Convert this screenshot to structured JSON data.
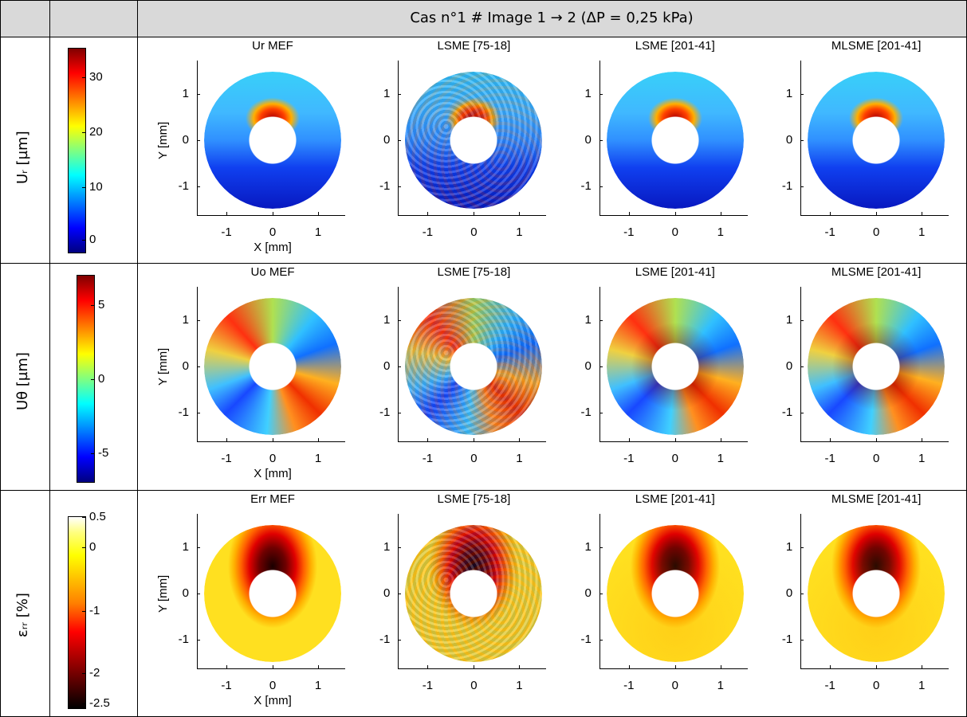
{
  "header": {
    "title": "Cas n°1 # Image 1 → 2 (ΔP = 0,25 kPa)"
  },
  "axes": {
    "xticks": [
      "-1",
      "0",
      "1"
    ],
    "yticks": [
      "1",
      "0",
      "-1"
    ],
    "xlabel": "X [mm]",
    "ylabel": "Y [mm]"
  },
  "rows": [
    {
      "label": "Uᵣ [µm]",
      "colorbar": {
        "ticks": [
          "30",
          "20",
          "10",
          "0"
        ]
      },
      "panels": [
        "Ur MEF",
        "LSME [75-18]",
        "LSME [201-41]",
        "MLSME [201-41]"
      ]
    },
    {
      "label": "Uθ [µm]",
      "colorbar": {
        "ticks": [
          "5",
          "0",
          "-5"
        ]
      },
      "panels": [
        "Uo MEF",
        "LSME [75-18]",
        "LSME [201-41]",
        "MLSME [201-41]"
      ]
    },
    {
      "label": "εᵣᵣ [%]",
      "colorbar": {
        "ticks": [
          "0.5",
          "0",
          "-1",
          "-2",
          "-2.5"
        ]
      },
      "panels": [
        "Err MEF",
        "LSME [75-18]",
        "LSME [201-41]",
        "MLSME [201-41]"
      ]
    }
  ]
}
